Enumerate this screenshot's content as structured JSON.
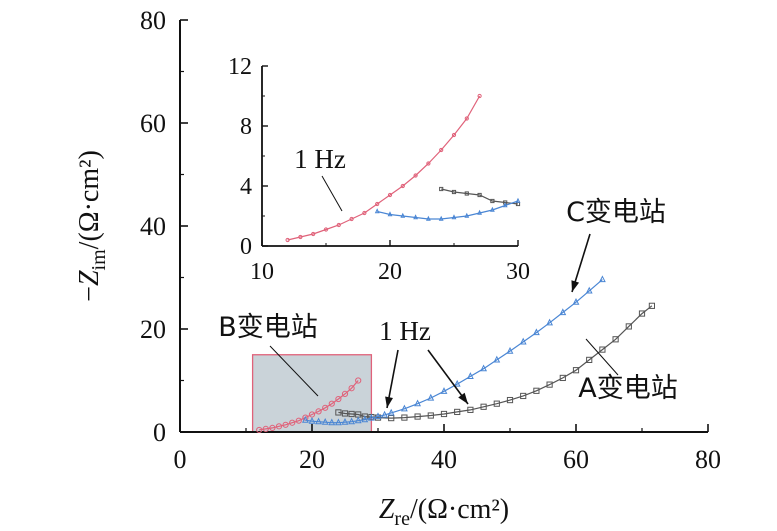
{
  "chart_data": [
    {
      "type": "scatter",
      "role": "main",
      "xlim": [
        0,
        80
      ],
      "ylim": [
        0,
        80
      ],
      "xticks": [
        0,
        20,
        40,
        60,
        80
      ],
      "yticks": [
        0,
        20,
        40,
        60,
        80
      ],
      "xlabel": {
        "main": "Z",
        "sub": "re",
        "tail": "/(Ω·cm²)"
      },
      "ylabel": {
        "prefix": "−",
        "main": "Z",
        "sub": "im",
        "tail": "/(Ω·cm²)"
      },
      "grid": false,
      "series": [
        {
          "name": "A变电站",
          "color": "#555555",
          "marker": "square",
          "points": [
            [
              24,
              3.8
            ],
            [
              25,
              3.6
            ],
            [
              26,
              3.5
            ],
            [
              27,
              3.4
            ],
            [
              28,
              3.0
            ],
            [
              29,
              2.9
            ],
            [
              30,
              2.8
            ],
            [
              32,
              2.7
            ],
            [
              34,
              2.8
            ],
            [
              36,
              3.0
            ],
            [
              38,
              3.2
            ],
            [
              40,
              3.5
            ],
            [
              42,
              3.9
            ],
            [
              44,
              4.3
            ],
            [
              46,
              4.9
            ],
            [
              48,
              5.5
            ],
            [
              50,
              6.2
            ],
            [
              52,
              7.0
            ],
            [
              54,
              8.0
            ],
            [
              56,
              9.2
            ],
            [
              58,
              10.5
            ],
            [
              60,
              12.0
            ],
            [
              62,
              14.0
            ],
            [
              64,
              16.0
            ],
            [
              66,
              18.0
            ],
            [
              68,
              20.5
            ],
            [
              70,
              23.0
            ],
            [
              71.5,
              24.5
            ]
          ]
        },
        {
          "name": "B变电站",
          "color": "#e0627a",
          "marker": "circle",
          "points": [
            [
              12,
              0.4
            ],
            [
              13,
              0.6
            ],
            [
              14,
              0.8
            ],
            [
              15,
              1.1
            ],
            [
              16,
              1.4
            ],
            [
              17,
              1.8
            ],
            [
              18,
              2.2
            ],
            [
              19,
              2.8
            ],
            [
              20,
              3.4
            ],
            [
              21,
              4.0
            ],
            [
              22,
              4.7
            ],
            [
              23,
              5.5
            ],
            [
              24,
              6.4
            ],
            [
              25,
              7.4
            ],
            [
              26,
              8.5
            ],
            [
              27,
              10.0
            ]
          ]
        },
        {
          "name": "C变电站",
          "color": "#4a86d4",
          "marker": "triangle",
          "points": [
            [
              19,
              2.3
            ],
            [
              20,
              2.1
            ],
            [
              21,
              2.0
            ],
            [
              22,
              1.9
            ],
            [
              23,
              1.8
            ],
            [
              24,
              1.8
            ],
            [
              25,
              1.9
            ],
            [
              26,
              2.0
            ],
            [
              27,
              2.2
            ],
            [
              28,
              2.4
            ],
            [
              29,
              2.7
            ],
            [
              30,
              3.0
            ],
            [
              31,
              3.3
            ],
            [
              32,
              3.7
            ],
            [
              34,
              4.5
            ],
            [
              36,
              5.5
            ],
            [
              38,
              6.6
            ],
            [
              40,
              7.9
            ],
            [
              42,
              9.3
            ],
            [
              44,
              10.8
            ],
            [
              46,
              12.3
            ],
            [
              48,
              14.0
            ],
            [
              50,
              15.7
            ],
            [
              52,
              17.5
            ],
            [
              54,
              19.3
            ],
            [
              56,
              21.2
            ],
            [
              58,
              23.2
            ],
            [
              60,
              25.2
            ],
            [
              62,
              27.4
            ],
            [
              64,
              29.6
            ]
          ]
        }
      ],
      "annotations": [
        {
          "text": "C变电站",
          "series": "C变电站"
        },
        {
          "text": "B变电站",
          "series": "B变电站"
        },
        {
          "text": "A变电站",
          "series": "A变电站"
        },
        {
          "text": "1 Hz"
        }
      ],
      "zoom_region": {
        "x": [
          11,
          29
        ],
        "y": [
          0,
          15
        ],
        "fill": "#b8c4cc",
        "stroke": "#e0627a"
      }
    },
    {
      "type": "scatter",
      "role": "inset",
      "xlim": [
        10,
        30
      ],
      "ylim": [
        0,
        12
      ],
      "xticks": [
        10,
        20,
        30
      ],
      "yticks": [
        0,
        4,
        8,
        12
      ],
      "grid": false,
      "series_ref": [
        "A变电站",
        "B变电站",
        "C变电站"
      ],
      "x_clip": [
        10,
        30
      ],
      "annotations": [
        {
          "text": "1 Hz"
        }
      ]
    }
  ]
}
